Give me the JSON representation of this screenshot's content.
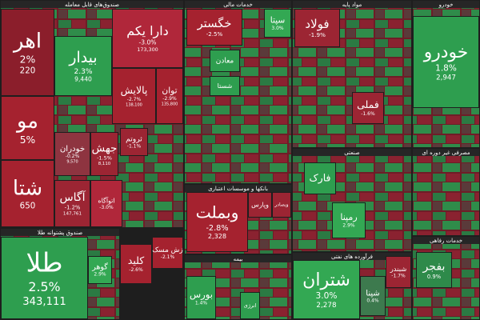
{
  "sectors": [
    {
      "title": "صندوق‌های قابل معامله"
    },
    {
      "title": "صندوق پشتوانه طلا"
    },
    {
      "title": "خدمات مالی"
    },
    {
      "title": "بانکها و موسسات اعتباری"
    },
    {
      "title": "بیمه"
    },
    {
      "title": "مواد پایه"
    },
    {
      "title": "صنعتی"
    },
    {
      "title": "فرآورده های نفتی"
    },
    {
      "title": "خودرو"
    },
    {
      "title": "مصرفی غیر دوره ای"
    },
    {
      "title": "خدمات رفاهی"
    }
  ],
  "tiles": [
    {
      "name": "اهر",
      "change": "2%",
      "volume": "220",
      "color": "#8b1e2b"
    },
    {
      "name": "مو",
      "change": "5%",
      "color": "#a5222f"
    },
    {
      "name": "شتا",
      "volume": "650",
      "color": "#a5222f"
    },
    {
      "name": "بیدار",
      "change": "2.3%",
      "volume": "9,440",
      "color": "#2e9e4f"
    },
    {
      "name": "دارا یکم",
      "change": "-3.0%",
      "volume": "173,300",
      "color": "#b0273a"
    },
    {
      "name": "پالایش",
      "change": "-2.7%",
      "volume": "138,100",
      "color": "#a5222f"
    },
    {
      "name": "توان",
      "change": "-2.9%",
      "volume": "135,800",
      "color": "#a5222f"
    },
    {
      "name": "خودران",
      "change": "-0.2%",
      "volume": "9,570",
      "color": "#8e3440"
    },
    {
      "name": "جهش",
      "change": "-1.5%",
      "volume": "8,110",
      "color": "#9c2533"
    },
    {
      "name": "ثروتم",
      "change": "-1.1%",
      "color": "#9c2533"
    },
    {
      "name": "آگاس",
      "change": "-1.2%",
      "volume": "147,761",
      "color": "#9c2533"
    },
    {
      "name": "اتوآگاه",
      "change": "-3.0%",
      "color": "#b0273a"
    },
    {
      "name": "طلا",
      "change": "2.5%",
      "volume": "343,111",
      "color": "#2e9e4f"
    },
    {
      "name": "گوهر",
      "change": "2.9%",
      "color": "#33a853"
    },
    {
      "name": "کلید",
      "change": "-2.6%",
      "color": "#a5222f"
    },
    {
      "name": "زش مسک",
      "change": "-2.1%",
      "color": "#a5222f"
    },
    {
      "name": "خگستر",
      "change": "-2.5%",
      "color": "#a5222f"
    },
    {
      "name": "سپتا",
      "change": "3.0%",
      "color": "#33a853"
    },
    {
      "name": "معادن",
      "color": "#2e9e4f"
    },
    {
      "name": "شستا",
      "color": "#2e9e4f"
    },
    {
      "name": "وبملت",
      "change": "-2.8%",
      "volume": "2,328",
      "color": "#a5222f"
    },
    {
      "name": "وپارس",
      "color": "#9c2533"
    },
    {
      "name": "وبصادر",
      "color": "#9c2533"
    },
    {
      "name": "بورس",
      "change": "1.4%",
      "color": "#2e9e4f"
    },
    {
      "name": "انرژی",
      "color": "#2e9e4f"
    },
    {
      "name": "فولاد",
      "change": "-1.9%",
      "color": "#9c2533"
    },
    {
      "name": "فملی",
      "change": "-1.6%",
      "color": "#9c2533"
    },
    {
      "name": "خودرو",
      "change": "1.8%",
      "volume": "2,947",
      "color": "#2e9e4f"
    },
    {
      "name": "فارک",
      "color": "#2e9e4f"
    },
    {
      "name": "رمپنا",
      "change": "2.9%",
      "color": "#33a853"
    },
    {
      "name": "شتران",
      "change": "3.0%",
      "volume": "2,278",
      "color": "#33a853"
    },
    {
      "name": "شپنا",
      "change": "0.4%",
      "color": "#3d7a4e"
    },
    {
      "name": "شبندر",
      "change": "-1.7%",
      "color": "#9c2533"
    },
    {
      "name": "بفجر",
      "change": "0.9%",
      "color": "#2e8a4a"
    }
  ]
}
